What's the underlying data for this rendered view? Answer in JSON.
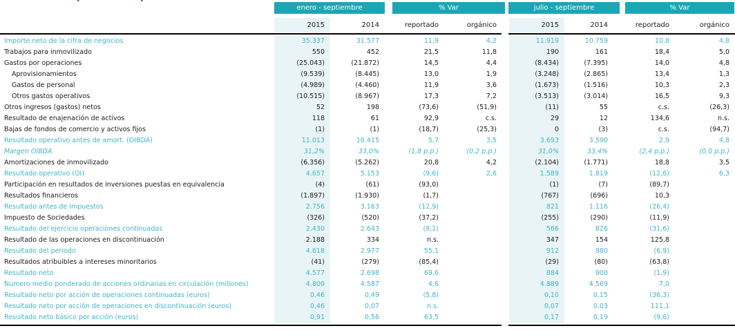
{
  "colors": {
    "band": "#1ca5b5",
    "teal_text": "#3eb4c8",
    "highlight": "#e9f4f7",
    "black_text": "#1a1a1a"
  },
  "table": {
    "period_groups": [
      {
        "label": "enero - septiembre"
      },
      {
        "label": "% Var"
      },
      {
        "label": "julio - septiembre"
      },
      {
        "label": "% Var"
      }
    ],
    "column_headers": [
      "2015",
      "2014",
      "reportado",
      "orgánico",
      "2015",
      "2014",
      "reportado",
      "orgánico"
    ],
    "rows": [
      {
        "label": "Importe neto de la cifra de negocios",
        "style": "teal",
        "indent": false,
        "italic": false,
        "values": [
          "35.337",
          "31.577",
          "11,9",
          "4,2",
          "11.919",
          "10.759",
          "10,8",
          "4,8"
        ]
      },
      {
        "label": "Trabajos para inmovilizado",
        "style": "black",
        "indent": false,
        "italic": false,
        "values": [
          "550",
          "452",
          "21,5",
          "11,8",
          "190",
          "161",
          "18,4",
          "5,0"
        ]
      },
      {
        "label": "Gastos por operaciones",
        "style": "black",
        "indent": false,
        "italic": false,
        "values": [
          "(25.043)",
          "(21.872)",
          "14,5",
          "4,4",
          "(8.434)",
          "(7.395)",
          "14,0",
          "4,8"
        ]
      },
      {
        "label": "Aprovisionamientos",
        "style": "black",
        "indent": true,
        "italic": false,
        "values": [
          "(9.539)",
          "(8.445)",
          "13,0",
          "1,9",
          "(3.248)",
          "(2.865)",
          "13,4",
          "1,3"
        ]
      },
      {
        "label": "Gastos de personal",
        "style": "black",
        "indent": true,
        "italic": false,
        "values": [
          "(4.989)",
          "(4.460)",
          "11,9",
          "3,6",
          "(1.673)",
          "(1.516)",
          "10,3",
          "2,3"
        ]
      },
      {
        "label": "Otros gastos operativos",
        "style": "black",
        "indent": true,
        "italic": false,
        "values": [
          "(10.515)",
          "(8.967)",
          "17,3",
          "7,2",
          "(3.513)",
          "(3.014)",
          "16,5",
          "9,3"
        ]
      },
      {
        "label": "Otros ingresos (gastos) netos",
        "style": "black",
        "indent": false,
        "italic": false,
        "values": [
          "52",
          "198",
          "(73,6)",
          "(51,9)",
          "(11)",
          "55",
          "c.s.",
          "(26,3)"
        ]
      },
      {
        "label": "Resultado de enajenación de activos",
        "style": "black",
        "indent": false,
        "italic": false,
        "values": [
          "118",
          "61",
          "92,9",
          "c.s.",
          "29",
          "12",
          "134,6",
          "n.s."
        ]
      },
      {
        "label": "Bajas de fondos de comercio y activos fijos",
        "style": "black",
        "indent": false,
        "italic": false,
        "values": [
          "(1)",
          "(1)",
          "(18,7)",
          "(25,3)",
          "0",
          "(3)",
          "c.s.",
          "(94,7)"
        ]
      },
      {
        "label": "Resultado operativo antes de amort. (OIBDA)",
        "style": "teal",
        "indent": false,
        "italic": false,
        "values": [
          "11.013",
          "10.415",
          "5,7",
          "3,5",
          "3.693",
          "3.590",
          "2,9",
          "4,8"
        ]
      },
      {
        "label": "Margen OIBDA",
        "style": "teal",
        "indent": false,
        "italic": true,
        "values": [
          "31,2%",
          "33,0%",
          "(1,8 p.p.)",
          "(0,2 p.p.)",
          "31,0%",
          "33,4%",
          "(2,4 p.p.)",
          "(0,0 p.p.)"
        ]
      },
      {
        "label": "Amortizaciones de inmovilizado",
        "style": "black",
        "indent": false,
        "italic": false,
        "values": [
          "(6.356)",
          "(5.262)",
          "20,8",
          "4,2",
          "(2.104)",
          "(1.771)",
          "18,8",
          "3,5"
        ]
      },
      {
        "label": "Resultado operativo (OI)",
        "style": "teal",
        "indent": false,
        "italic": false,
        "values": [
          "4.657",
          "5.153",
          "(9,6)",
          "2,6",
          "1.589",
          "1.819",
          "(12,6)",
          "6,3"
        ]
      },
      {
        "label": "Participación en resultados de inversiones puestas en equivalencia",
        "style": "black",
        "indent": false,
        "italic": false,
        "values": [
          "(4)",
          "(61)",
          "(93,0)",
          "",
          "(1)",
          "(7)",
          "(89,7)",
          ""
        ]
      },
      {
        "label": "Resultados financieros",
        "style": "black",
        "indent": false,
        "italic": false,
        "values": [
          "(1.897)",
          "(1.930)",
          "(1,7)",
          "",
          "(767)",
          "(696)",
          "10,3",
          ""
        ]
      },
      {
        "label": "Resultado antes de impuestos",
        "style": "teal",
        "indent": false,
        "italic": false,
        "values": [
          "2.756",
          "3.163",
          "(12,9)",
          "",
          "821",
          "1.116",
          "(26,4)",
          ""
        ]
      },
      {
        "label": "Impuesto de Sociedades",
        "style": "black",
        "indent": false,
        "italic": false,
        "values": [
          "(326)",
          "(520)",
          "(37,2)",
          "",
          "(255)",
          "(290)",
          "(11,9)",
          ""
        ]
      },
      {
        "label": "Resultado del ejercicio operaciones continuadas",
        "style": "teal",
        "indent": false,
        "italic": false,
        "values": [
          "2.430",
          "2.643",
          "(8,1)",
          "",
          "566",
          "826",
          "(31,6)",
          ""
        ]
      },
      {
        "label": "Resultado de las operaciones en discontinuación",
        "style": "black",
        "indent": false,
        "italic": false,
        "values": [
          "2.188",
          "334",
          "n.s.",
          "",
          "347",
          "154",
          "125,8",
          ""
        ]
      },
      {
        "label": "Resultado del periodo",
        "style": "teal",
        "indent": false,
        "italic": false,
        "values": [
          "4.618",
          "2.977",
          "55,1",
          "",
          "912",
          "980",
          "(6,9)",
          ""
        ]
      },
      {
        "label": "Resultados atribuibles a intereses minoritarios",
        "style": "black",
        "indent": false,
        "italic": false,
        "values": [
          "(41)",
          "(279)",
          "(85,4)",
          "",
          "(29)",
          "(80)",
          "(63,8)",
          ""
        ]
      },
      {
        "label": "Resultado neto",
        "style": "teal",
        "indent": false,
        "italic": false,
        "values": [
          "4.577",
          "2.698",
          "69,6",
          "",
          "884",
          "900",
          "(1,9)",
          ""
        ]
      },
      {
        "label": "Numero medio ponderado de acciones ordinarias en circulación (millones)",
        "style": "teal",
        "indent": false,
        "italic": false,
        "values": [
          "4.800",
          "4.587",
          "4,6",
          "",
          "4.889",
          "4.569",
          "7,0",
          ""
        ]
      },
      {
        "label": "Resultado neto por acción de operaciones continuadas (euros)",
        "style": "teal",
        "indent": false,
        "italic": false,
        "values": [
          "0,46",
          "0,49",
          "(5,8)",
          "",
          "0,10",
          "0,15",
          "(36,3)",
          ""
        ]
      },
      {
        "label": "Resultado neto por acción de operaciones en discontinuación (euros)",
        "style": "teal",
        "indent": false,
        "italic": false,
        "values": [
          "0,46",
          "0,07",
          "n.s.",
          "",
          "0,07",
          "0,03",
          "111,1",
          ""
        ]
      },
      {
        "label": "Resultado neto básico por acción (euros)",
        "style": "teal",
        "indent": false,
        "italic": false,
        "values": [
          "0,91",
          "0,56",
          "63,5",
          "",
          "0,17",
          "0,19",
          "(9,6)",
          ""
        ]
      }
    ]
  }
}
